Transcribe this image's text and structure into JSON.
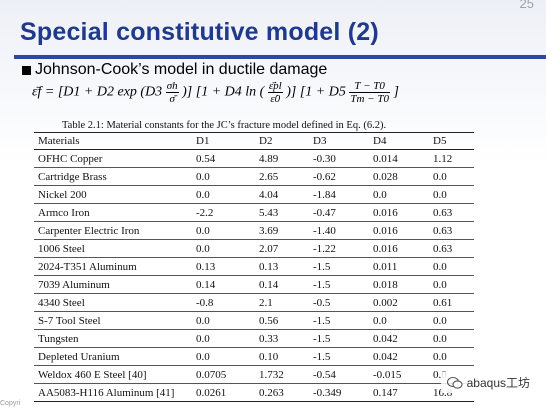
{
  "slide_number": "25",
  "title": "Special constitutive model (2)",
  "bullet": "Johnson-Cook’s model in ductile damage",
  "equation": {
    "lhs": "ε̄f =",
    "term1": "[D1 + D2 exp (D3",
    "sigma_num": "σh",
    "sigma_den": "σ̄",
    "term1_close": ")]",
    "term2": "[1 + D4 ln (",
    "rate_num": "ε̄̇pl",
    "rate_den": "ε̇0",
    "term2_close": ")]",
    "term3": "[1 + D5",
    "temp_num": "T − T0",
    "temp_den": "Tm − T0",
    "term3_close": "]"
  },
  "caption": "Table 2.1: Material constants for the JC’s fracture model defined in Eq. (6.2).",
  "table": {
    "headers": [
      "Materials",
      "D1",
      "D2",
      "D3",
      "D4",
      "D5"
    ],
    "rows": [
      [
        "OFHC Copper",
        "0.54",
        "4.89",
        "-0.30",
        "0.014",
        "1.12"
      ],
      [
        "Cartridge Brass",
        "0.0",
        "2.65",
        "-0.62",
        "0.028",
        "0.0"
      ],
      [
        "Nickel 200",
        "0.0",
        "4.04",
        "-1.84",
        "0.0",
        "0.0"
      ],
      [
        "Armco Iron",
        "-2.2",
        "5.43",
        "-0.47",
        "0.016",
        "0.63"
      ],
      [
        "Carpenter Electric Iron",
        "0.0",
        "3.69",
        "-1.40",
        "0.016",
        "0.63"
      ],
      [
        "1006 Steel",
        "0.0",
        "2.07",
        "-1.22",
        "0.016",
        "0.63"
      ],
      [
        "2024-T351 Aluminum",
        "0.13",
        "0.13",
        "-1.5",
        "0.011",
        "0.0"
      ],
      [
        "7039 Aluminum",
        "0.14",
        "0.14",
        "-1.5",
        "0.018",
        "0.0"
      ],
      [
        "4340 Steel",
        "-0.8",
        "2.1",
        "-0.5",
        "0.002",
        "0.61"
      ],
      [
        "S-7 Tool Steel",
        "0.0",
        "0.56",
        "-1.5",
        "0.0",
        "0.0"
      ],
      [
        "Tungsten",
        "0.0",
        "0.33",
        "-1.5",
        "0.042",
        "0.0"
      ],
      [
        "Depleted Uranium",
        "0.0",
        "0.10",
        "-1.5",
        "0.042",
        "0.0"
      ],
      [
        "Weldox 460 E Steel [40]",
        "0.0705",
        "1.732",
        "-0.54",
        "-0.015",
        "0.0"
      ],
      [
        "AA5083-H116 Aluminum [41]",
        "0.0261",
        "0.263",
        "-0.349",
        "0.147",
        "16.8"
      ]
    ]
  },
  "watermark": "abaqus工坊",
  "copyright": "Copyri"
}
